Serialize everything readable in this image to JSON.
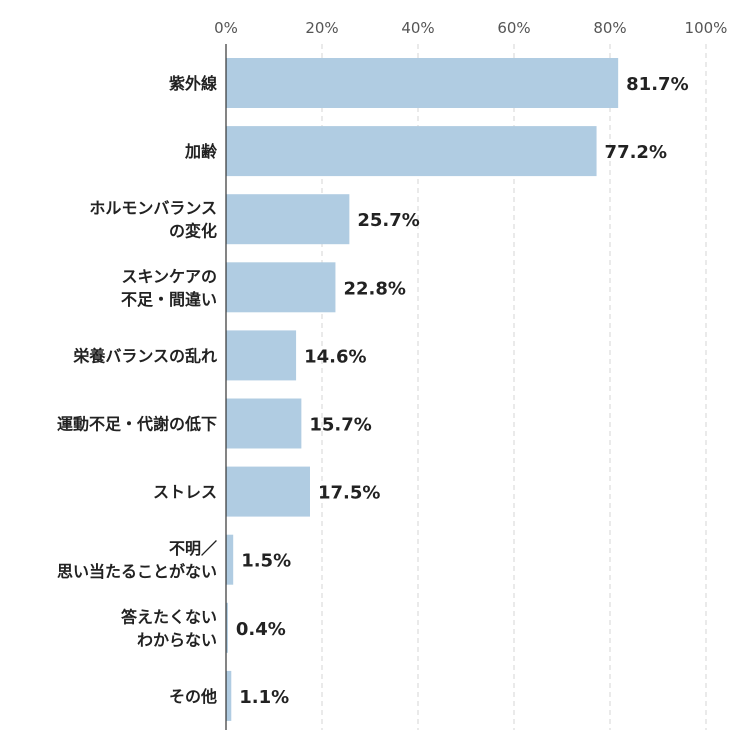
{
  "chart_data": {
    "type": "bar",
    "orientation": "horizontal",
    "xlim": [
      0,
      100
    ],
    "x_ticks": [
      "0%",
      "20%",
      "40%",
      "60%",
      "80%",
      "100%"
    ],
    "tick_values": [
      0,
      20,
      40,
      60,
      80,
      100
    ],
    "grid": true,
    "bar_color": "#b0cce2",
    "axis_color": "#333333",
    "grid_color": "#d5d5d5",
    "categories": [
      [
        "紫外線"
      ],
      [
        "加齢"
      ],
      [
        "ホルモンバランス",
        "の変化"
      ],
      [
        "スキンケアの",
        "不足・間違い"
      ],
      [
        "栄養バランスの乱れ"
      ],
      [
        "運動不足・代謝の低下"
      ],
      [
        "ストレス"
      ],
      [
        "不明／",
        "思い当たることがない"
      ],
      [
        "答えたくない",
        "わからない"
      ],
      [
        "その他"
      ]
    ],
    "values": [
      81.7,
      77.2,
      25.7,
      22.8,
      14.6,
      15.7,
      17.5,
      1.5,
      0.4,
      1.1
    ],
    "value_labels": [
      "81.7%",
      "77.2%",
      "25.7%",
      "22.8%",
      "14.6%",
      "15.7%",
      "17.5%",
      "1.5%",
      "0.4%",
      "1.1%"
    ]
  }
}
